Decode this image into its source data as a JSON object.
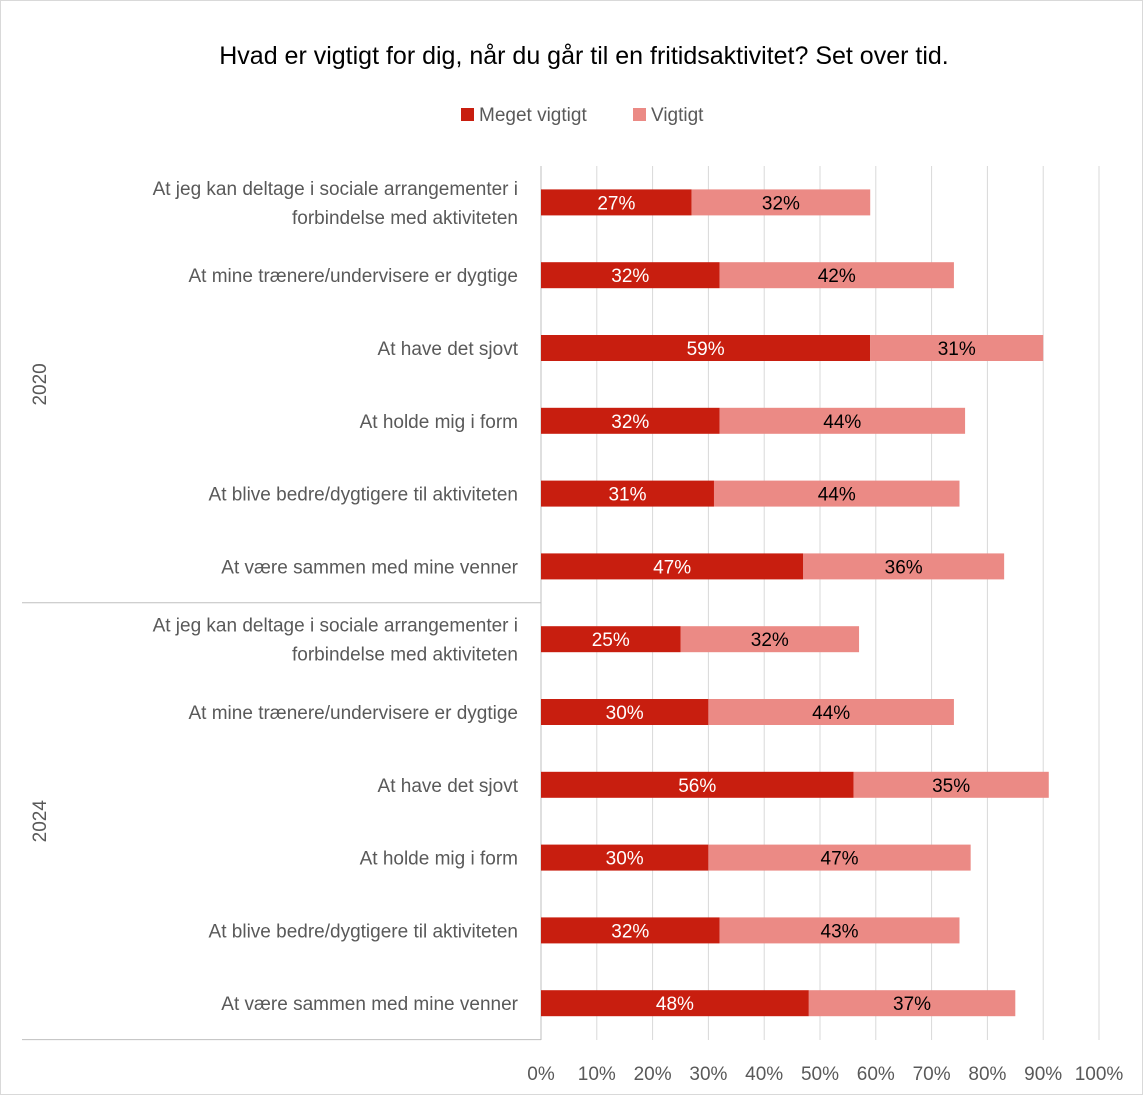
{
  "chart_data": {
    "type": "bar",
    "orientation": "horizontal",
    "stacked": true,
    "title": "Hvad er vigtigt for dig, når du går til en fritidsaktivitet? Set over tid.",
    "legend": {
      "position": "top",
      "entries": [
        "Meget vigtigt",
        "Vigtigt"
      ]
    },
    "xlim": [
      0,
      100
    ],
    "x_ticks": [
      "0%",
      "10%",
      "20%",
      "30%",
      "40%",
      "50%",
      "60%",
      "70%",
      "80%",
      "90%",
      "100%"
    ],
    "grid": true,
    "colors": {
      "meget_vigtigt": "#c81e0f",
      "vigtigt": "#eb8a85",
      "gridline": "#d9d9d9",
      "axis": "#bfbfbf"
    },
    "groups": [
      {
        "name": "2020",
        "rows": [
          {
            "label": [
              "At jeg kan deltage i sociale arrangementer i",
              "forbindelse med aktiviteten"
            ],
            "values": [
              27,
              32
            ],
            "value_labels": [
              "27%",
              "32%"
            ]
          },
          {
            "label": [
              "At mine trænere/undervisere er dygtige"
            ],
            "values": [
              32,
              42
            ],
            "value_labels": [
              "32%",
              "42%"
            ]
          },
          {
            "label": [
              "At have det sjovt"
            ],
            "values": [
              59,
              31
            ],
            "value_labels": [
              "59%",
              "31%"
            ]
          },
          {
            "label": [
              "At holde mig i form"
            ],
            "values": [
              32,
              44
            ],
            "value_labels": [
              "32%",
              "44%"
            ]
          },
          {
            "label": [
              "At blive bedre/dygtigere til aktiviteten"
            ],
            "values": [
              31,
              44
            ],
            "value_labels": [
              "31%",
              "44%"
            ]
          },
          {
            "label": [
              "At være sammen med mine venner"
            ],
            "values": [
              47,
              36
            ],
            "value_labels": [
              "47%",
              "36%"
            ]
          }
        ]
      },
      {
        "name": "2024",
        "rows": [
          {
            "label": [
              "At jeg kan deltage i sociale arrangementer i",
              "forbindelse med aktiviteten"
            ],
            "values": [
              25,
              32
            ],
            "value_labels": [
              "25%",
              "32%"
            ]
          },
          {
            "label": [
              "At mine trænere/undervisere er dygtige"
            ],
            "values": [
              30,
              44
            ],
            "value_labels": [
              "30%",
              "44%"
            ]
          },
          {
            "label": [
              "At have det sjovt"
            ],
            "values": [
              56,
              35
            ],
            "value_labels": [
              "56%",
              "35%"
            ]
          },
          {
            "label": [
              "At holde mig i form"
            ],
            "values": [
              30,
              47
            ],
            "value_labels": [
              "30%",
              "47%"
            ]
          },
          {
            "label": [
              "At blive bedre/dygtigere til aktiviteten"
            ],
            "values": [
              32,
              43
            ],
            "value_labels": [
              "32%",
              "43%"
            ]
          },
          {
            "label": [
              "At være sammen med mine venner"
            ],
            "values": [
              48,
              37
            ],
            "value_labels": [
              "48%",
              "37%"
            ]
          }
        ]
      }
    ]
  }
}
